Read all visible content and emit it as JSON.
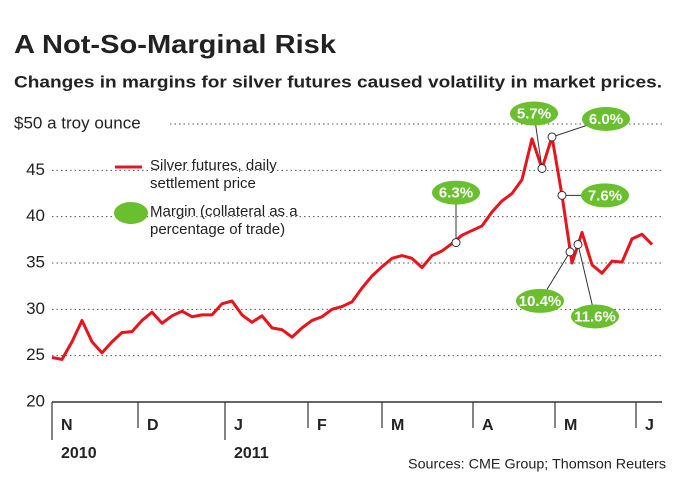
{
  "chart_data": {
    "type": "line",
    "title": "A Not-So-Marginal Risk",
    "subtitle": "Changes in margins for silver futures caused volatility in market prices.",
    "source": "Sources: CME Group; Thomson Reuters",
    "series": [
      {
        "name": "Silver futures, daily settlement price",
        "color": "#e8141c",
        "values": [
          24.8,
          24.6,
          26.5,
          28.8,
          26.5,
          25.3,
          26.5,
          27.5,
          27.6,
          28.8,
          29.7,
          28.5,
          29.3,
          29.8,
          29.2,
          29.4,
          29.4,
          30.6,
          30.9,
          29.4,
          28.6,
          29.3,
          28.0,
          27.8,
          27.0,
          28.0,
          28.8,
          29.2,
          30.0,
          30.3,
          30.8,
          32.3,
          33.6,
          34.6,
          35.5,
          35.8,
          35.5,
          34.5,
          35.8,
          36.3,
          37.1,
          38.0,
          38.5,
          39.0,
          40.5,
          41.7,
          42.5,
          44.0,
          48.4,
          45.2,
          48.6,
          42.3,
          35.0,
          38.3,
          34.8,
          33.9,
          35.2,
          35.1,
          37.6,
          38.1,
          37.0
        ]
      }
    ],
    "annotation_legend": {
      "name": "Margin (collateral as a percentage of trade)",
      "color": "#6abf2e"
    },
    "annotations": [
      {
        "label": "6.3%",
        "x": 40.4,
        "y": 37.2
      },
      {
        "label": "5.7%",
        "x": 49,
        "y": 45.2
      },
      {
        "label": "6.0%",
        "x": 50,
        "y": 48.6
      },
      {
        "label": "7.6%",
        "x": 51,
        "y": 42.3
      },
      {
        "label": "10.4%",
        "x": 51.8,
        "y": 36.2
      },
      {
        "label": "11.6%",
        "x": 52.6,
        "y": 37.0
      }
    ],
    "xlim": [
      0,
      60
    ],
    "xticks": [
      {
        "value": 0,
        "label": "N"
      },
      {
        "value": 8.6,
        "label": "D"
      },
      {
        "value": 17.3,
        "label": "J"
      },
      {
        "value": 25.6,
        "label": "F"
      },
      {
        "value": 33,
        "label": "M"
      },
      {
        "value": 42.1,
        "label": "A"
      },
      {
        "value": 50.3,
        "label": "M"
      },
      {
        "value": 58.4,
        "label": "J"
      }
    ],
    "x_year_labels": [
      {
        "value": 0,
        "label": "2010"
      },
      {
        "value": 17.3,
        "label": "2011"
      }
    ],
    "ylim": [
      20,
      50
    ],
    "yticks": [
      20,
      25,
      30,
      35,
      40,
      45,
      {
        "value": 50,
        "label": "$50 a troy ounce"
      }
    ],
    "grid": true
  }
}
